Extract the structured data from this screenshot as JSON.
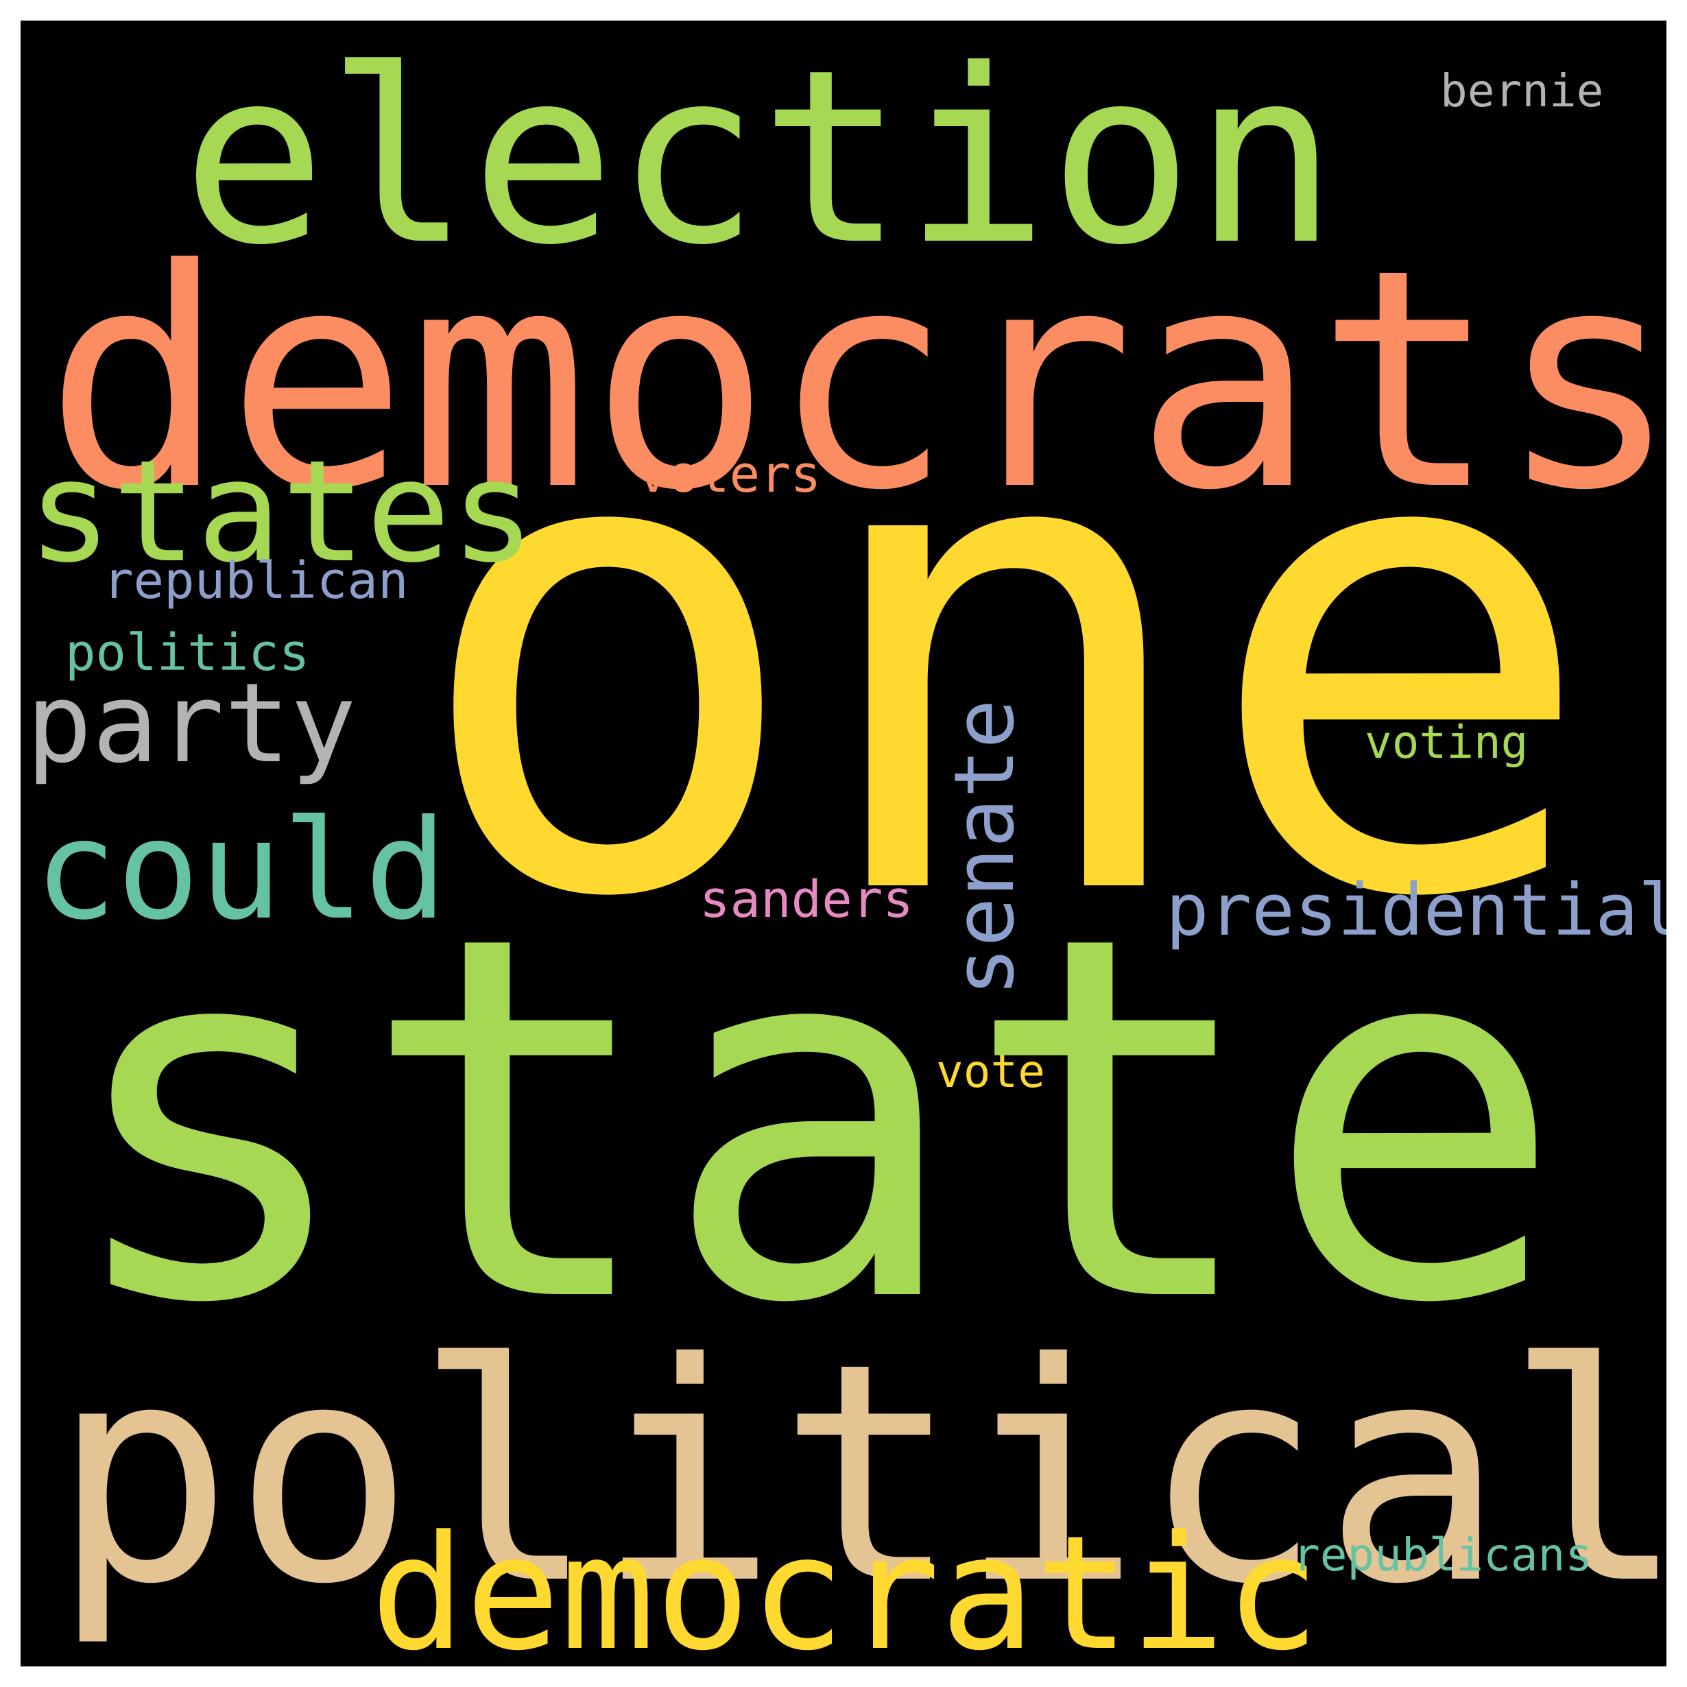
{
  "word_cloud": {
    "colors": {
      "background": "#000000",
      "frame": "#ffffff",
      "green": "#a6d854",
      "salmon": "#fc8d62",
      "yellow": "#ffd92f",
      "tan": "#e5c494",
      "gray": "#b3b3b3",
      "teal": "#66c2a5",
      "blue_gray": "#8da0cb",
      "pink": "#e78ac3"
    },
    "words": [
      {
        "text": "one",
        "color": "#ffd92f",
        "orientation": "horizontal"
      },
      {
        "text": "state",
        "color": "#a6d854",
        "orientation": "horizontal"
      },
      {
        "text": "democrats",
        "color": "#fc8d62",
        "orientation": "horizontal"
      },
      {
        "text": "political",
        "color": "#e5c494",
        "orientation": "horizontal"
      },
      {
        "text": "election",
        "color": "#a6d854",
        "orientation": "horizontal"
      },
      {
        "text": "democratic",
        "color": "#ffd92f",
        "orientation": "horizontal"
      },
      {
        "text": "states",
        "color": "#a6d854",
        "orientation": "horizontal"
      },
      {
        "text": "could",
        "color": "#66c2a5",
        "orientation": "horizontal"
      },
      {
        "text": "party",
        "color": "#b3b3b3",
        "orientation": "horizontal"
      },
      {
        "text": "senate",
        "color": "#8da0cb",
        "orientation": "vertical"
      },
      {
        "text": "presidential",
        "color": "#8da0cb",
        "orientation": "horizontal"
      },
      {
        "text": "republican",
        "color": "#8da0cb",
        "orientation": "horizontal"
      },
      {
        "text": "politics",
        "color": "#66c2a5",
        "orientation": "horizontal"
      },
      {
        "text": "voters",
        "color": "#fc8d62",
        "orientation": "horizontal"
      },
      {
        "text": "sanders",
        "color": "#e78ac3",
        "orientation": "horizontal"
      },
      {
        "text": "voting",
        "color": "#a6d854",
        "orientation": "horizontal"
      },
      {
        "text": "vote",
        "color": "#ffd92f",
        "orientation": "horizontal"
      },
      {
        "text": "republicans",
        "color": "#66c2a5",
        "orientation": "horizontal"
      },
      {
        "text": "bernie",
        "color": "#b3b3b3",
        "orientation": "horizontal"
      }
    ]
  }
}
